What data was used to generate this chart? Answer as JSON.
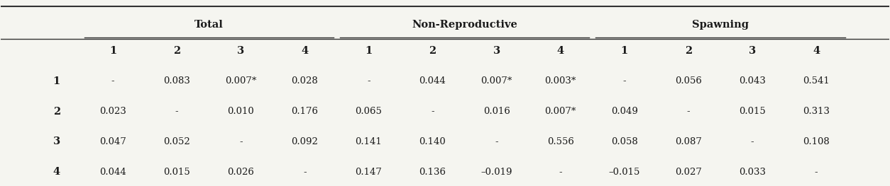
{
  "group_headers": [
    "Total",
    "Non-Reproductive",
    "Spawning"
  ],
  "col_subheaders": [
    "1",
    "2",
    "3",
    "4",
    "1",
    "2",
    "3",
    "4",
    "1",
    "2",
    "3",
    "4"
  ],
  "row_headers": [
    "1",
    "2",
    "3",
    "4"
  ],
  "cells": [
    [
      "-",
      "0.083",
      "0.007*",
      "0.028",
      "-",
      "0.044",
      "0.007*",
      "0.003*",
      "-",
      "0.056",
      "0.043",
      "0.541"
    ],
    [
      "0.023",
      "-",
      "0.010",
      "0.176",
      "0.065",
      "-",
      "0.016",
      "0.007*",
      "0.049",
      "-",
      "0.015",
      "0.313"
    ],
    [
      "0.047",
      "0.052",
      "-",
      "0.092",
      "0.141",
      "0.140",
      "-",
      "0.556",
      "0.058",
      "0.087",
      "-",
      "0.108"
    ],
    [
      "0.044",
      "0.015",
      "0.026",
      "-",
      "0.147",
      "0.136",
      "–0.019",
      "-",
      "–0.015",
      "0.027",
      "0.033",
      "-"
    ]
  ],
  "bg_color": "#f5f5f0",
  "text_color": "#1a1a1a",
  "line_color": "#333333",
  "font_size": 9.5,
  "header_font_size": 10.5
}
